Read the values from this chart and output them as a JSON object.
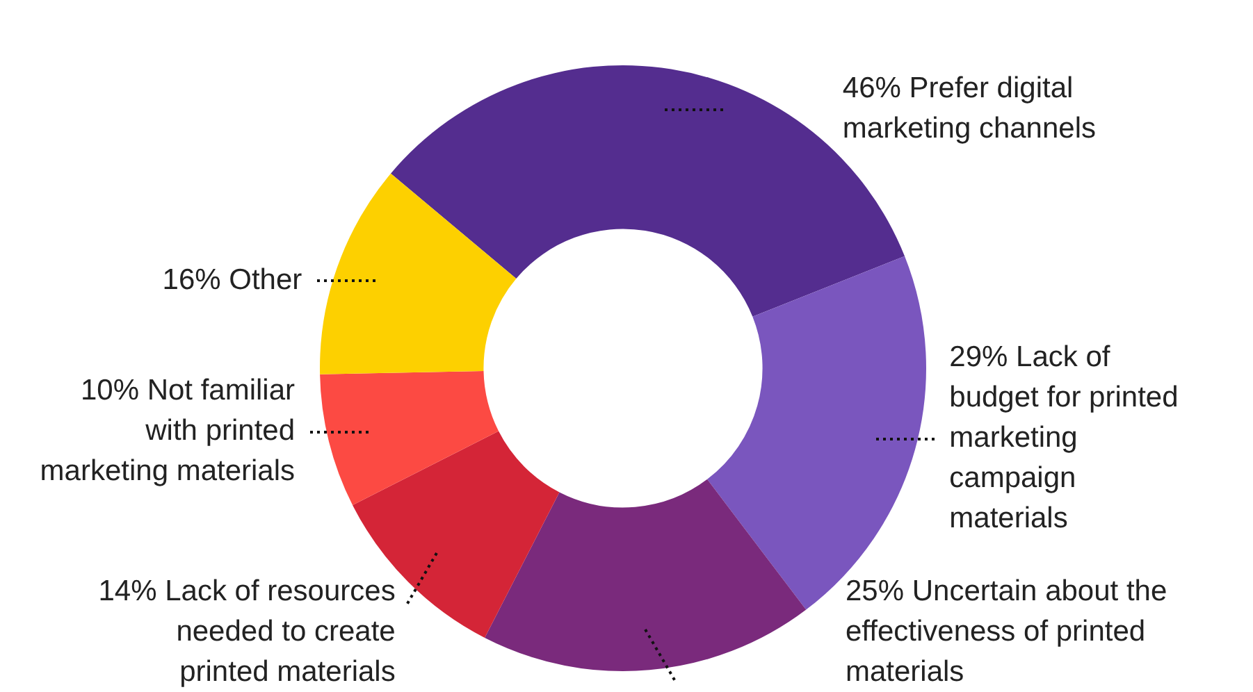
{
  "chart_data": {
    "type": "donut",
    "categories": [
      "Prefer digital marketing channels",
      "Lack of budget for printed marketing campaign materials",
      "Uncertain about the effectiveness of printed materials",
      "Lack of resources needed to create printed materials",
      "Not familiar with printed marketing materials",
      "Other"
    ],
    "values": [
      46,
      29,
      25,
      14,
      10,
      16
    ],
    "value_labels": [
      "46%",
      "29%",
      "25%",
      "14%",
      "10%",
      "16%"
    ],
    "colors": [
      "#542d8f",
      "#7a56be",
      "#7a2a7c",
      "#d42537",
      "#fc4a43",
      "#fdd000"
    ],
    "legend": false
  }
}
